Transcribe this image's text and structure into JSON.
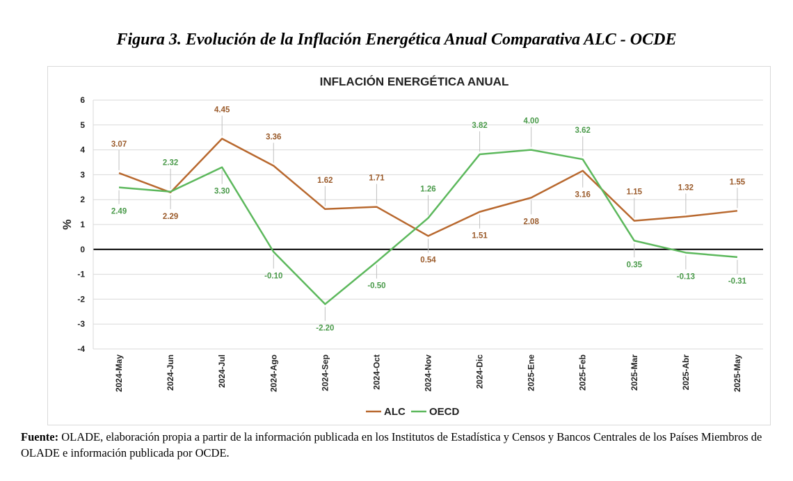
{
  "figure_title": "Figura 3. Evolución de la Inflación Energética Anual Comparativa ALC - OCDE",
  "source": {
    "label": "Fuente:",
    "text": " OLADE, elaboración propia a partir de la información publicada en los Institutos de Estadística y Censos y Bancos Centrales de los Países Miembros de OLADE e información publicada por OCDE."
  },
  "chart_data": {
    "type": "line",
    "title": "INFLACIÓN ENERGÉTICA ANUAL",
    "xlabel": "",
    "ylabel": "%",
    "ylim": [
      -4,
      6
    ],
    "yticks": [
      6,
      5,
      4,
      3,
      2,
      1,
      0,
      -1,
      -2,
      -3,
      -4
    ],
    "grid": true,
    "legend": "bottom-center",
    "categories": [
      "2024-May",
      "2024-Jun",
      "2024-Jul",
      "2024-Ago",
      "2024-Sep",
      "2024-Oct",
      "2024-Nov",
      "2024-Dic",
      "2025-Ene",
      "2025-Feb",
      "2025-Mar",
      "2025-Abr",
      "2025-May"
    ],
    "series": [
      {
        "name": "ALC",
        "color": "#b8682e",
        "values": [
          3.07,
          2.29,
          4.45,
          3.36,
          1.62,
          1.71,
          0.54,
          1.51,
          2.08,
          3.16,
          1.15,
          1.32,
          1.55
        ],
        "labels": [
          "3.07",
          "2.29",
          "4.45",
          "3.36",
          "1.62",
          "1.71",
          "0.54",
          "1.51",
          "2.08",
          "3.16",
          "1.15",
          "1.32",
          "1.55"
        ]
      },
      {
        "name": "OECD",
        "color": "#5cb85c",
        "values": [
          2.49,
          2.32,
          3.3,
          -0.1,
          -2.2,
          -0.5,
          1.26,
          3.82,
          4.0,
          3.62,
          0.35,
          -0.13,
          -0.31
        ],
        "labels": [
          "2.49",
          "2.32",
          "3.30",
          "-0.10",
          "-2.20",
          "-0.50",
          "1.26",
          "3.82",
          "4.00",
          "3.62",
          "0.35",
          "-0.13",
          "-0.31"
        ]
      }
    ]
  }
}
